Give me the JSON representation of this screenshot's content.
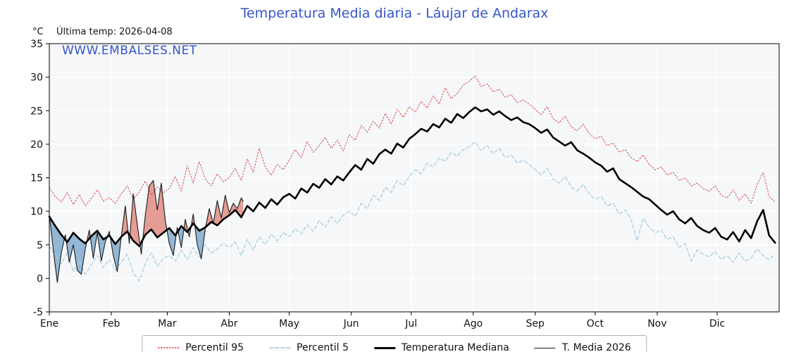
{
  "annotations": {
    "last_temp": "Última temp: 2026-04-08",
    "watermark": "WWW.EMBALSES.NET"
  },
  "chart_data": {
    "type": "line",
    "title": "Temperatura Media diaria - Láujar de Andarax",
    "ylabel": "°C",
    "xlabel": "",
    "ylim": [
      -5,
      35
    ],
    "x_range": [
      0,
      365
    ],
    "grid": true,
    "legend_position": "bottom",
    "y_ticks": [
      -5,
      0,
      5,
      10,
      15,
      20,
      25,
      30,
      35
    ],
    "x_ticks": {
      "days": [
        0,
        31,
        59,
        90,
        120,
        151,
        181,
        212,
        243,
        273,
        304,
        334
      ],
      "labels": [
        "Ene",
        "Feb",
        "Mar",
        "Abr",
        "May",
        "Jun",
        "Jul",
        "Ago",
        "Sep",
        "Oct",
        "Nov",
        "Dic"
      ]
    },
    "style": {
      "plot_bg": "#f5f7f9",
      "grid_color": "#ffffff",
      "title_color": "#3656c9",
      "watermark_color": "#3656c9"
    },
    "fills": {
      "above_color": "#e0857c",
      "below_color": "#7aa6cb",
      "opacity": 0.8
    },
    "series": [
      {
        "id": "p95",
        "name": "Percentil 95",
        "color": "#d9534f",
        "dash": "dotted",
        "width": 1.1,
        "day_start": 0,
        "day_step": 3,
        "values": [
          13.5,
          12.2,
          11.4,
          12.8,
          11.0,
          12.5,
          10.8,
          11.9,
          13.2,
          11.5,
          12.0,
          11.2,
          12.6,
          13.8,
          11.8,
          12.9,
          14.5,
          12.4,
          13.6,
          12.8,
          13.4,
          15.2,
          13.0,
          16.8,
          14.2,
          17.4,
          14.8,
          13.8,
          15.6,
          14.4,
          15.0,
          16.4,
          14.6,
          17.8,
          15.8,
          19.4,
          16.6,
          15.4,
          17.0,
          16.2,
          17.6,
          19.2,
          18.0,
          20.4,
          18.8,
          19.8,
          21.0,
          19.4,
          20.6,
          19.0,
          21.4,
          20.6,
          22.8,
          21.8,
          23.4,
          22.4,
          24.6,
          23.0,
          25.2,
          24.0,
          25.6,
          24.8,
          26.4,
          25.4,
          27.2,
          26.0,
          28.4,
          26.8,
          27.6,
          28.8,
          29.4,
          30.2,
          28.6,
          29.0,
          27.8,
          28.2,
          27.0,
          27.4,
          26.2,
          26.6,
          26.0,
          25.2,
          24.4,
          25.6,
          23.8,
          23.2,
          24.2,
          22.6,
          22.0,
          23.0,
          21.6,
          20.8,
          21.2,
          19.8,
          20.2,
          18.8,
          19.2,
          18.0,
          17.4,
          18.4,
          17.0,
          16.2,
          16.6,
          15.4,
          15.8,
          14.6,
          15.0,
          13.8,
          14.2,
          13.4,
          13.0,
          13.8,
          12.4,
          12.0,
          13.2,
          11.6,
          12.6,
          11.2,
          14.0,
          15.8,
          12.2,
          11.4
        ]
      },
      {
        "id": "p5",
        "name": "Percentil 5",
        "color": "#a9cfe0",
        "dash": "dashed",
        "width": 1.3,
        "day_start": 0,
        "day_step": 3,
        "values": [
          4.8,
          3.5,
          2.2,
          3.8,
          1.0,
          2.6,
          0.6,
          2.0,
          3.4,
          1.6,
          2.8,
          1.2,
          2.4,
          3.6,
          0.8,
          -0.4,
          2.2,
          3.8,
          1.8,
          3.0,
          3.4,
          2.6,
          4.2,
          2.8,
          4.6,
          3.2,
          5.0,
          3.8,
          4.4,
          5.2,
          4.6,
          5.4,
          3.4,
          5.8,
          4.2,
          6.2,
          5.0,
          6.6,
          5.6,
          6.8,
          6.2,
          7.4,
          6.6,
          8.0,
          7.0,
          8.6,
          7.6,
          9.2,
          8.2,
          9.4,
          10.0,
          9.2,
          11.2,
          10.4,
          12.4,
          11.6,
          13.6,
          12.8,
          14.6,
          13.8,
          15.2,
          16.2,
          15.6,
          17.2,
          16.6,
          18.0,
          17.4,
          18.8,
          18.2,
          19.2,
          19.6,
          20.4,
          19.0,
          19.8,
          18.6,
          19.4,
          18.0,
          18.4,
          17.2,
          17.6,
          17.0,
          16.2,
          15.4,
          16.4,
          14.8,
          14.2,
          15.2,
          13.6,
          13.0,
          14.0,
          12.6,
          11.8,
          12.2,
          10.8,
          11.2,
          9.6,
          10.2,
          8.8,
          5.6,
          9.0,
          7.6,
          6.8,
          7.2,
          5.8,
          6.2,
          4.6,
          5.2,
          2.6,
          4.2,
          3.6,
          3.2,
          4.0,
          2.8,
          3.4,
          2.4,
          3.8,
          2.6,
          3.0,
          4.4,
          3.4,
          2.8,
          3.6
        ]
      },
      {
        "id": "mediana",
        "name": "Temperatura Mediana",
        "color": "#000000",
        "dash": "solid",
        "width": 2.6,
        "day_start": 0,
        "day_step": 3,
        "values": [
          9.2,
          7.8,
          6.5,
          5.4,
          6.8,
          5.9,
          5.2,
          6.3,
          7.1,
          5.8,
          6.4,
          5.1,
          6.2,
          7.0,
          5.6,
          4.8,
          6.5,
          7.3,
          6.1,
          6.8,
          7.5,
          6.4,
          7.8,
          6.9,
          8.2,
          7.1,
          7.6,
          8.4,
          7.9,
          8.8,
          9.4,
          10.2,
          9.1,
          10.8,
          10.0,
          11.3,
          10.5,
          11.8,
          11.0,
          12.1,
          12.6,
          11.9,
          13.4,
          12.8,
          14.1,
          13.5,
          14.8,
          14.0,
          15.2,
          14.6,
          15.8,
          16.9,
          16.2,
          17.8,
          17.1,
          18.5,
          19.2,
          18.6,
          20.1,
          19.5,
          20.8,
          21.5,
          22.3,
          21.9,
          23.0,
          22.5,
          23.8,
          23.2,
          24.5,
          23.9,
          24.8,
          25.5,
          24.9,
          25.2,
          24.4,
          24.9,
          24.2,
          23.6,
          24.0,
          23.3,
          23.0,
          22.4,
          21.7,
          22.2,
          21.0,
          20.4,
          19.8,
          20.3,
          19.1,
          18.6,
          18.0,
          17.3,
          16.8,
          15.9,
          16.4,
          14.8,
          14.2,
          13.6,
          12.9,
          12.2,
          11.8,
          11.0,
          10.2,
          9.5,
          10.0,
          8.8,
          8.2,
          9.0,
          7.8,
          7.2,
          6.8,
          7.5,
          6.2,
          5.8,
          6.9,
          5.5,
          7.2,
          6.0,
          8.5,
          10.2,
          6.4,
          5.3
        ]
      },
      {
        "id": "t2026",
        "name": "T. Media 2026",
        "color": "#1a1a1a",
        "dash": "solid",
        "width": 1.1,
        "days": [
          0,
          2,
          4,
          6,
          8,
          10,
          12,
          14,
          16,
          18,
          20,
          22,
          24,
          26,
          28,
          30,
          32,
          34,
          36,
          38,
          40,
          42,
          44,
          46,
          48,
          50,
          52,
          54,
          56,
          58,
          60,
          62,
          64,
          66,
          68,
          70,
          72,
          74,
          76,
          78,
          80,
          82,
          84,
          86,
          88,
          90,
          92,
          94,
          96,
          97
        ],
        "values": [
          9.5,
          4.2,
          -0.6,
          3.8,
          6.5,
          2.4,
          5.0,
          1.2,
          0.6,
          4.4,
          7.2,
          3.0,
          6.8,
          2.6,
          5.4,
          7.0,
          3.4,
          1.0,
          6.2,
          10.8,
          5.2,
          12.6,
          8.0,
          3.6,
          9.4,
          13.8,
          14.6,
          10.2,
          14.2,
          8.6,
          5.2,
          3.4,
          7.6,
          4.6,
          8.8,
          6.2,
          9.6,
          5.0,
          2.9,
          7.4,
          10.4,
          8.2,
          11.6,
          9.0,
          12.4,
          9.8,
          11.2,
          10.4,
          12.0,
          11.5
        ]
      }
    ]
  }
}
